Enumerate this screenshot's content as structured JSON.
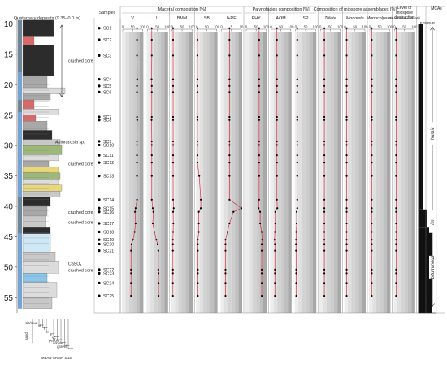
{
  "chart_data": {
    "type": "line",
    "depth_axis": {
      "label": "",
      "ticks": [
        10,
        15,
        20,
        25,
        30,
        35,
        40,
        45,
        50,
        55
      ],
      "range": [
        9.35,
        58.0
      ]
    },
    "quaternary_label": "Quaternary deposits (9.35–0.0 m)",
    "samples_header": "Samples",
    "groups": [
      {
        "title": "Maceral composition [%]",
        "panels": [
          0,
          1,
          2,
          3,
          4
        ]
      },
      {
        "title": "Palynofacies composition [%]",
        "panels": [
          5,
          6,
          7
        ]
      },
      {
        "title": "Composition of miospore assemblages [%]",
        "panels": [
          8,
          9,
          10
        ]
      },
      {
        "title": "Level of miospore destruction",
        "panels": [
          11
        ]
      },
      {
        "title": "MCAs",
        "panels": [
          12
        ]
      }
    ],
    "panels": [
      {
        "id": "V",
        "label": "V",
        "italic": false,
        "ticks": [
          "0",
          "50",
          "100"
        ]
      },
      {
        "id": "L",
        "label": "L",
        "italic": false,
        "ticks": [
          "0",
          "50",
          "100"
        ]
      },
      {
        "id": "BMM",
        "label": "BMM",
        "italic": false,
        "ticks": [
          "0",
          "50",
          "100"
        ]
      },
      {
        "id": "SB",
        "label": "SB",
        "italic": false,
        "ticks": [
          "0",
          "50",
          "100"
        ]
      },
      {
        "id": "IRE",
        "label": "I+RE",
        "italic": false,
        "ticks": [
          "0",
          "5",
          "10"
        ]
      },
      {
        "id": "PHY",
        "label": "PHY",
        "italic": false,
        "ticks": [
          "0",
          "50",
          "100"
        ]
      },
      {
        "id": "AOM",
        "label": "AOM",
        "italic": false,
        "ticks": [
          "0",
          "50",
          "100"
        ]
      },
      {
        "id": "SP",
        "label": "SP",
        "italic": false,
        "ticks": [
          "0",
          "50",
          "100"
        ]
      },
      {
        "id": "Trilete",
        "label": "Trilete",
        "italic": true,
        "ticks": [
          "0",
          "50",
          "100"
        ]
      },
      {
        "id": "Monolete",
        "label": "Monolete",
        "italic": true,
        "ticks": [
          "0",
          "50",
          "100"
        ]
      },
      {
        "id": "Monocolpates",
        "label": "Monocolpates",
        "italic": true,
        "ticks": [
          "0",
          "50",
          "100"
        ]
      },
      {
        "id": "Bisaccates",
        "label": "Disaccates + Striatiti",
        "italic": true,
        "ticks": [
          "0",
          "50",
          "100"
        ]
      }
    ],
    "destruction_classes": [
      "EG",
      "R",
      "P",
      "VP"
    ],
    "samples": [
      "SC1",
      "SC2",
      "SC3",
      "SC4",
      "SC5",
      "SC6",
      "SC7",
      "SC8",
      "SC9",
      "SC10",
      "SC11",
      "SC12",
      "SC13",
      "SC14",
      "SC15",
      "SC16",
      "SC17",
      "SC18",
      "SC19",
      "SC20",
      "SC21",
      "SC22",
      "SC23",
      "SC24",
      "SC25"
    ],
    "sample_depths": [
      10.7,
      12.6,
      15.2,
      19.1,
      20.2,
      21.2,
      25.3,
      25.8,
      29.3,
      29.9,
      31.6,
      32.8,
      35.0,
      38.9,
      40.3,
      40.9,
      42.8,
      44.2,
      45.5,
      46.2,
      47.3,
      50.4,
      51.0,
      52.6,
      54.7
    ],
    "series": [
      {
        "panel": "V",
        "values": [
          72,
          72,
          72,
          73,
          72,
          72,
          72,
          73,
          72,
          72,
          72,
          72,
          72,
          72,
          65,
          62,
          65,
          60,
          52,
          45,
          42,
          42,
          42,
          42,
          42
        ]
      },
      {
        "panel": "L",
        "values": [
          22,
          22,
          22,
          21,
          22,
          22,
          22,
          21,
          22,
          22,
          22,
          22,
          22,
          22,
          27,
          30,
          27,
          35,
          45,
          52,
          55,
          55,
          56,
          56,
          56
        ]
      },
      {
        "panel": "BMM",
        "values": [
          5,
          5,
          5,
          5,
          5,
          5,
          5,
          5,
          5,
          5,
          5,
          5,
          5,
          5,
          8,
          5,
          6,
          5,
          4,
          4,
          4,
          4,
          4,
          4,
          4
        ]
      },
      {
        "panel": "SB",
        "values": [
          3,
          3,
          3,
          3,
          3,
          3,
          3,
          3,
          3,
          3,
          3,
          3,
          12,
          20,
          20,
          10,
          10,
          10,
          5,
          5,
          5,
          5,
          5,
          5,
          5
        ]
      },
      {
        "panel": "IRE",
        "values": [
          4,
          4,
          4,
          4,
          4,
          4,
          4,
          4,
          4,
          4,
          4,
          4,
          4,
          4,
          10,
          6,
          4,
          3,
          2,
          2,
          2,
          2,
          2,
          2,
          2
        ]
      },
      {
        "panel": "PHY",
        "values": [
          65,
          65,
          65,
          65,
          65,
          65,
          65,
          65,
          65,
          65,
          65,
          65,
          65,
          65,
          62,
          70,
          70,
          78,
          80,
          78,
          78,
          78,
          78,
          78,
          78
        ]
      },
      {
        "panel": "AOM",
        "values": [
          30,
          30,
          30,
          30,
          30,
          30,
          30,
          30,
          30,
          30,
          30,
          30,
          30,
          30,
          32,
          22,
          22,
          20,
          18,
          20,
          20,
          20,
          20,
          20,
          20
        ]
      },
      {
        "panel": "SP",
        "values": [
          8,
          8,
          8,
          8,
          8,
          8,
          8,
          8,
          8,
          8,
          8,
          8,
          8,
          8,
          8,
          5,
          5,
          3,
          2,
          2,
          2,
          3,
          3,
          3,
          3
        ]
      },
      {
        "panel": "Trilete",
        "values": [
          20,
          20,
          20,
          20,
          20,
          20,
          20,
          20,
          20,
          20,
          20,
          20,
          20,
          20,
          20,
          20,
          20,
          20,
          20,
          20,
          20,
          20,
          20,
          20,
          20
        ]
      },
      {
        "panel": "Monolete",
        "values": [
          8,
          8,
          8,
          8,
          8,
          8,
          8,
          8,
          8,
          8,
          8,
          8,
          8,
          8,
          8,
          8,
          8,
          8,
          8,
          8,
          8,
          8,
          8,
          8,
          8
        ]
      },
      {
        "panel": "Monocolpates",
        "values": [
          10,
          10,
          10,
          10,
          10,
          10,
          10,
          10,
          10,
          10,
          10,
          10,
          10,
          10,
          10,
          10,
          10,
          10,
          10,
          10,
          10,
          10,
          10,
          10,
          10
        ]
      },
      {
        "panel": "Bisaccates",
        "values": [
          8,
          8,
          8,
          8,
          8,
          8,
          8,
          8,
          8,
          8,
          8,
          8,
          8,
          8,
          8,
          8,
          8,
          8,
          8,
          8,
          8,
          8,
          8,
          8,
          8
        ]
      }
    ],
    "destruction_levels": [
      {
        "from": 10.0,
        "to": 40.5,
        "class": "EG"
      },
      {
        "from": 40.5,
        "to": 43.5,
        "class": "R"
      },
      {
        "from": 43.5,
        "to": 57.5,
        "class": "P"
      }
    ],
    "mca_labels": [
      {
        "text": "humic",
        "at": 28.0
      },
      {
        "text": "im.",
        "at": 42.5
      },
      {
        "text": "bituminous",
        "at": 50.0
      }
    ],
    "lithology_notes": [
      {
        "text": "crushed core",
        "at": 16.0
      },
      {
        "text": "Anthracosia sp.",
        "at": 29.4
      },
      {
        "text": "crushed core",
        "at": 33.0
      },
      {
        "text": "crushed core",
        "at": 40.9
      },
      {
        "text": "crushed core",
        "at": 42.6
      },
      {
        "text": "CaSO₄",
        "at": 49.4
      },
      {
        "text": "crushed core",
        "at": 50.5
      }
    ],
    "grain_size_legend": {
      "labels": [
        "silt/mud",
        "vf",
        "f",
        "m",
        "c",
        "vc",
        "pebble",
        "cobble",
        "gravel"
      ],
      "group_label": "sand",
      "title": "MEAN GRAIN SIZE"
    },
    "colors": {
      "line": "#d9343c",
      "marker": "#000000",
      "ink": "#333333",
      "shade_light": "#ececec",
      "shade_mid": "#cccccc",
      "shade_dark": "#a8a8a8",
      "coal": "#2c2c2c",
      "shale": "#a8a8a8",
      "sandstone": "#dcdcdc",
      "claystone": "#c8c8c8",
      "sand_yellow": "#e9d87a",
      "sand_green": "#9db87a",
      "blue_light": "#cfe8f6",
      "blue_mid": "#8cc7ea",
      "red": "#d96a6a",
      "strip_blue": "#74a3d4",
      "strip_slate": "#6f8696"
    }
  }
}
